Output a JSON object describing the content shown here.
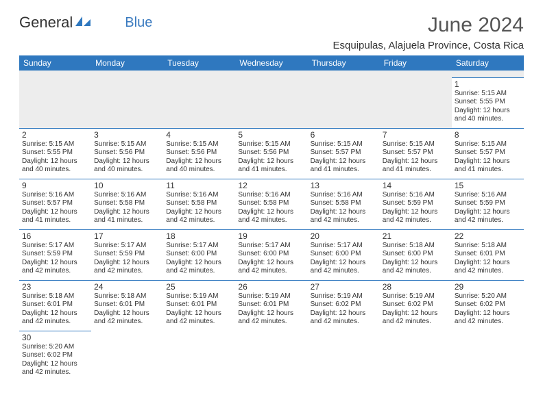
{
  "logo": {
    "text1": "General",
    "text2": "Blue"
  },
  "title": "June 2024",
  "location": "Esquipulas, Alajuela Province, Costa Rica",
  "header_bg": "#2f78bf",
  "header_text_color": "#ffffff",
  "border_color": "#2f78bf",
  "spacer_bg": "#ededed",
  "body_font_color": "#333333",
  "month_title_color": "#555555",
  "logo_blue": "#3a7abf",
  "days_of_week": [
    "Sunday",
    "Monday",
    "Tuesday",
    "Wednesday",
    "Thursday",
    "Friday",
    "Saturday"
  ],
  "weeks": [
    [
      null,
      null,
      null,
      null,
      null,
      null,
      {
        "n": "1",
        "sr": "5:15 AM",
        "ss": "5:55 PM",
        "dl": "12 hours and 40 minutes."
      }
    ],
    [
      {
        "n": "2",
        "sr": "5:15 AM",
        "ss": "5:55 PM",
        "dl": "12 hours and 40 minutes."
      },
      {
        "n": "3",
        "sr": "5:15 AM",
        "ss": "5:56 PM",
        "dl": "12 hours and 40 minutes."
      },
      {
        "n": "4",
        "sr": "5:15 AM",
        "ss": "5:56 PM",
        "dl": "12 hours and 40 minutes."
      },
      {
        "n": "5",
        "sr": "5:15 AM",
        "ss": "5:56 PM",
        "dl": "12 hours and 41 minutes."
      },
      {
        "n": "6",
        "sr": "5:15 AM",
        "ss": "5:57 PM",
        "dl": "12 hours and 41 minutes."
      },
      {
        "n": "7",
        "sr": "5:15 AM",
        "ss": "5:57 PM",
        "dl": "12 hours and 41 minutes."
      },
      {
        "n": "8",
        "sr": "5:15 AM",
        "ss": "5:57 PM",
        "dl": "12 hours and 41 minutes."
      }
    ],
    [
      {
        "n": "9",
        "sr": "5:16 AM",
        "ss": "5:57 PM",
        "dl": "12 hours and 41 minutes."
      },
      {
        "n": "10",
        "sr": "5:16 AM",
        "ss": "5:58 PM",
        "dl": "12 hours and 41 minutes."
      },
      {
        "n": "11",
        "sr": "5:16 AM",
        "ss": "5:58 PM",
        "dl": "12 hours and 42 minutes."
      },
      {
        "n": "12",
        "sr": "5:16 AM",
        "ss": "5:58 PM",
        "dl": "12 hours and 42 minutes."
      },
      {
        "n": "13",
        "sr": "5:16 AM",
        "ss": "5:58 PM",
        "dl": "12 hours and 42 minutes."
      },
      {
        "n": "14",
        "sr": "5:16 AM",
        "ss": "5:59 PM",
        "dl": "12 hours and 42 minutes."
      },
      {
        "n": "15",
        "sr": "5:16 AM",
        "ss": "5:59 PM",
        "dl": "12 hours and 42 minutes."
      }
    ],
    [
      {
        "n": "16",
        "sr": "5:17 AM",
        "ss": "5:59 PM",
        "dl": "12 hours and 42 minutes."
      },
      {
        "n": "17",
        "sr": "5:17 AM",
        "ss": "5:59 PM",
        "dl": "12 hours and 42 minutes."
      },
      {
        "n": "18",
        "sr": "5:17 AM",
        "ss": "6:00 PM",
        "dl": "12 hours and 42 minutes."
      },
      {
        "n": "19",
        "sr": "5:17 AM",
        "ss": "6:00 PM",
        "dl": "12 hours and 42 minutes."
      },
      {
        "n": "20",
        "sr": "5:17 AM",
        "ss": "6:00 PM",
        "dl": "12 hours and 42 minutes."
      },
      {
        "n": "21",
        "sr": "5:18 AM",
        "ss": "6:00 PM",
        "dl": "12 hours and 42 minutes."
      },
      {
        "n": "22",
        "sr": "5:18 AM",
        "ss": "6:01 PM",
        "dl": "12 hours and 42 minutes."
      }
    ],
    [
      {
        "n": "23",
        "sr": "5:18 AM",
        "ss": "6:01 PM",
        "dl": "12 hours and 42 minutes."
      },
      {
        "n": "24",
        "sr": "5:18 AM",
        "ss": "6:01 PM",
        "dl": "12 hours and 42 minutes."
      },
      {
        "n": "25",
        "sr": "5:19 AM",
        "ss": "6:01 PM",
        "dl": "12 hours and 42 minutes."
      },
      {
        "n": "26",
        "sr": "5:19 AM",
        "ss": "6:01 PM",
        "dl": "12 hours and 42 minutes."
      },
      {
        "n": "27",
        "sr": "5:19 AM",
        "ss": "6:02 PM",
        "dl": "12 hours and 42 minutes."
      },
      {
        "n": "28",
        "sr": "5:19 AM",
        "ss": "6:02 PM",
        "dl": "12 hours and 42 minutes."
      },
      {
        "n": "29",
        "sr": "5:20 AM",
        "ss": "6:02 PM",
        "dl": "12 hours and 42 minutes."
      }
    ],
    [
      {
        "n": "30",
        "sr": "5:20 AM",
        "ss": "6:02 PM",
        "dl": "12 hours and 42 minutes."
      },
      null,
      null,
      null,
      null,
      null,
      null
    ]
  ],
  "labels": {
    "sunrise": "Sunrise:",
    "sunset": "Sunset:",
    "daylight": "Daylight:"
  }
}
